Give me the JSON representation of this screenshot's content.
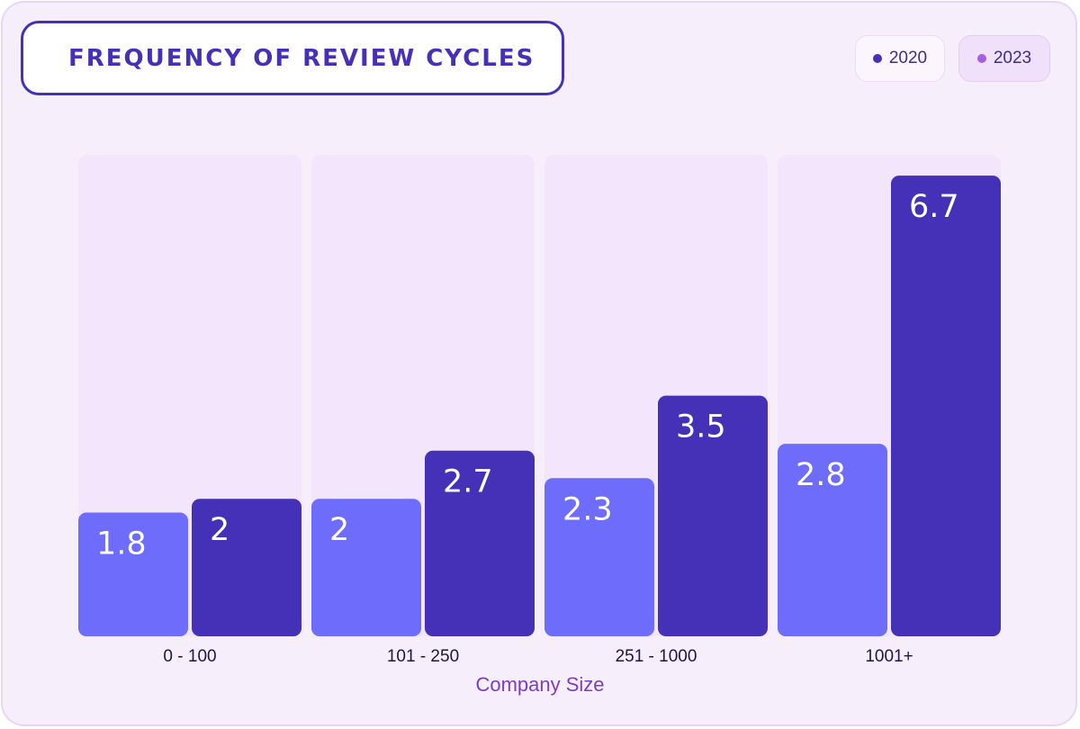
{
  "chart_data": {
    "type": "bar",
    "title": "FREQUENCY OF REVIEW CYCLES",
    "xlabel": "Company Size",
    "ylabel": "",
    "categories": [
      "0 - 100",
      "101 - 250",
      "251 - 1000",
      "1001+"
    ],
    "series": [
      {
        "name": "2020",
        "values": [
          1.8,
          2,
          2.3,
          2.8
        ],
        "color": "#6e6cfb"
      },
      {
        "name": "2023",
        "values": [
          2,
          2.7,
          3.5,
          6.7
        ],
        "color": "#4431b7"
      }
    ],
    "ylim": [
      0,
      7
    ],
    "grid": false,
    "legend_position": "top-right",
    "legend_marker_colors": [
      "#4431b7",
      "#a55ee0"
    ]
  },
  "colors": {
    "background": "#f7eefc",
    "track": "#f3e5fb",
    "accent": "#4431b7"
  }
}
